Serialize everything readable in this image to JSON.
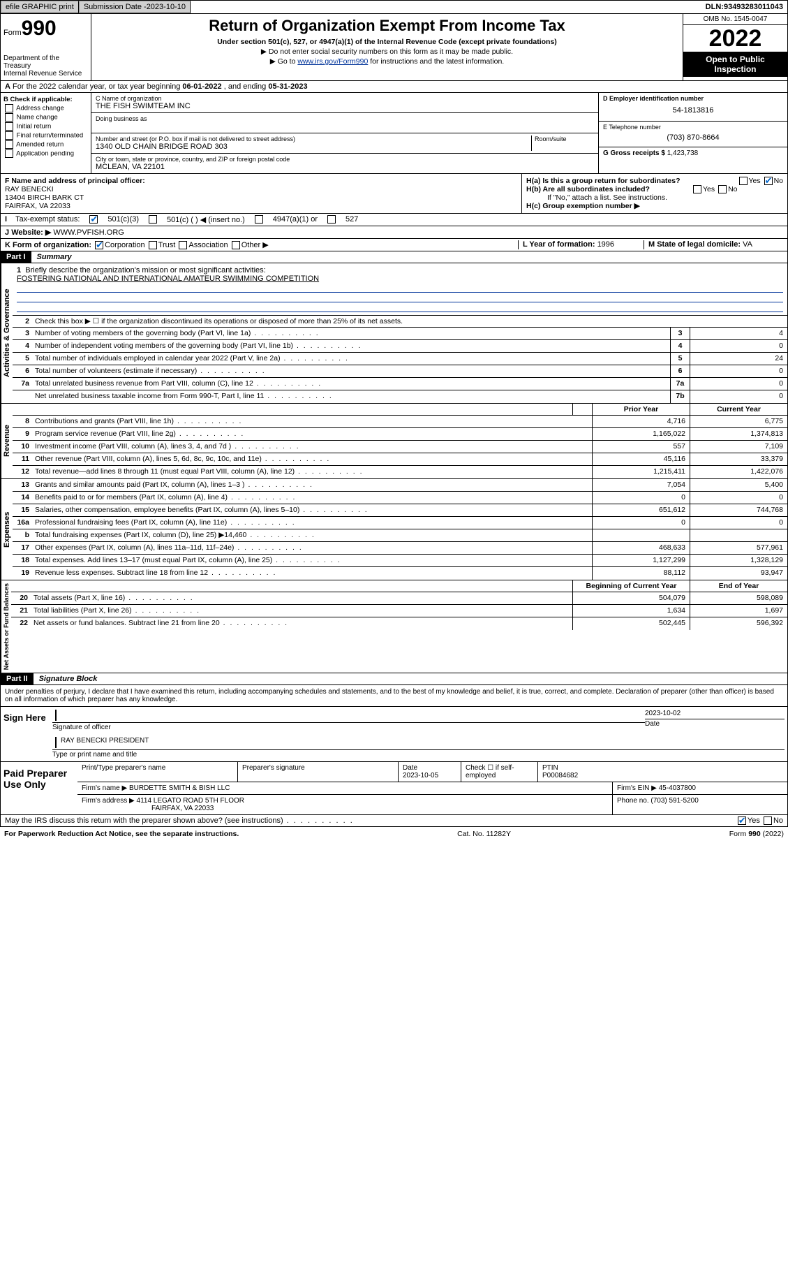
{
  "topbar": {
    "efile": "efile GRAPHIC print",
    "subdate_lbl": "Submission Date - ",
    "subdate": "2023-10-10",
    "dln_lbl": "DLN: ",
    "dln": "93493283011043"
  },
  "header": {
    "form_prefix": "Form",
    "form_no": "990",
    "dept": "Department of the Treasury\nInternal Revenue Service",
    "title": "Return of Organization Exempt From Income Tax",
    "subtitle": "Under section 501(c), 527, or 4947(a)(1) of the Internal Revenue Code (except private foundations)",
    "note1": "▶ Do not enter social security numbers on this form as it may be made public.",
    "note2_pre": "▶ Go to ",
    "note2_link": "www.irs.gov/Form990",
    "note2_post": " for instructions and the latest information.",
    "omb": "OMB No. 1545-0047",
    "year": "2022",
    "open": "Open to Public Inspection"
  },
  "rowA": {
    "text": "For the 2022 calendar year, or tax year beginning ",
    "begin": "06-01-2022",
    "mid": " , and ending ",
    "end": "05-31-2023"
  },
  "colB": {
    "hdr": "B Check if applicable:",
    "opts": [
      "Address change",
      "Name change",
      "Initial return",
      "Final return/terminated",
      "Amended return",
      "Application pending"
    ]
  },
  "boxC": {
    "name_lbl": "C Name of organization",
    "name": "THE FISH SWIMTEAM INC",
    "dba_lbl": "Doing business as",
    "addr_lbl": "Number and street (or P.O. box if mail is not delivered to street address)",
    "room_lbl": "Room/suite",
    "addr": "1340 OLD CHAIN BRIDGE ROAD 303",
    "city_lbl": "City or town, state or province, country, and ZIP or foreign postal code",
    "city": "MCLEAN, VA  22101"
  },
  "boxD": {
    "lbl": "D Employer identification number",
    "val": "54-1813816"
  },
  "boxE": {
    "lbl": "E Telephone number",
    "val": "(703) 870-8664"
  },
  "boxG": {
    "lbl": "G Gross receipts $ ",
    "val": "1,423,738"
  },
  "boxF": {
    "lbl": "F  Name and address of principal officer:",
    "name": "RAY BENECKI",
    "addr1": "13404 BIRCH BARK CT",
    "addr2": "FAIRFAX, VA  22033"
  },
  "boxH": {
    "a": "H(a)  Is this a group return for subordinates?",
    "b": "H(b)  Are all subordinates included?",
    "b_note": "If \"No,\" attach a list. See instructions.",
    "c": "H(c)  Group exemption number ▶",
    "yes": "Yes",
    "no": "No"
  },
  "rowI": {
    "lbl": "Tax-exempt status:",
    "opts": [
      "501(c)(3)",
      "501(c) (   ) ◀ (insert no.)",
      "4947(a)(1) or",
      "527"
    ]
  },
  "rowJ": {
    "lbl": "Website: ▶",
    "val": "WWW.PVFISH.ORG"
  },
  "rowK": {
    "lbl": "K Form of organization:",
    "opts": [
      "Corporation",
      "Trust",
      "Association",
      "Other ▶"
    ]
  },
  "rowL": {
    "lbl": "L Year of formation: ",
    "val": "1996"
  },
  "rowM": {
    "lbl": "M State of legal domicile: ",
    "val": "VA"
  },
  "part1": {
    "hdr": "Part I",
    "title": "Summary"
  },
  "summary": {
    "l1_lbl": "Briefly describe the organization's mission or most significant activities:",
    "l1_val": "FOSTERING NATIONAL AND INTERNATIONAL AMATEUR SWIMMING COMPETITION",
    "l2": "Check this box ▶ ☐  if the organization discontinued its operations or disposed of more than 25% of its net assets.",
    "lines_ag": [
      {
        "n": "3",
        "d": "Number of voting members of the governing body (Part VI, line 1a)",
        "b": "3",
        "v": "4"
      },
      {
        "n": "4",
        "d": "Number of independent voting members of the governing body (Part VI, line 1b)",
        "b": "4",
        "v": "0"
      },
      {
        "n": "5",
        "d": "Total number of individuals employed in calendar year 2022 (Part V, line 2a)",
        "b": "5",
        "v": "24"
      },
      {
        "n": "6",
        "d": "Total number of volunteers (estimate if necessary)",
        "b": "6",
        "v": "0"
      },
      {
        "n": "7a",
        "d": "Total unrelated business revenue from Part VIII, column (C), line 12",
        "b": "7a",
        "v": "0"
      },
      {
        "n": "",
        "d": "Net unrelated business taxable income from Form 990-T, Part I, line 11",
        "b": "7b",
        "v": "0"
      }
    ],
    "col_hdr": {
      "prior": "Prior Year",
      "current": "Current Year"
    },
    "revenue": [
      {
        "n": "8",
        "d": "Contributions and grants (Part VIII, line 1h)",
        "p": "4,716",
        "c": "6,775"
      },
      {
        "n": "9",
        "d": "Program service revenue (Part VIII, line 2g)",
        "p": "1,165,022",
        "c": "1,374,813"
      },
      {
        "n": "10",
        "d": "Investment income (Part VIII, column (A), lines 3, 4, and 7d )",
        "p": "557",
        "c": "7,109"
      },
      {
        "n": "11",
        "d": "Other revenue (Part VIII, column (A), lines 5, 6d, 8c, 9c, 10c, and 11e)",
        "p": "45,116",
        "c": "33,379"
      },
      {
        "n": "12",
        "d": "Total revenue—add lines 8 through 11 (must equal Part VIII, column (A), line 12)",
        "p": "1,215,411",
        "c": "1,422,076"
      }
    ],
    "expenses": [
      {
        "n": "13",
        "d": "Grants and similar amounts paid (Part IX, column (A), lines 1–3 )",
        "p": "7,054",
        "c": "5,400"
      },
      {
        "n": "14",
        "d": "Benefits paid to or for members (Part IX, column (A), line 4)",
        "p": "0",
        "c": "0"
      },
      {
        "n": "15",
        "d": "Salaries, other compensation, employee benefits (Part IX, column (A), lines 5–10)",
        "p": "651,612",
        "c": "744,768"
      },
      {
        "n": "16a",
        "d": "Professional fundraising fees (Part IX, column (A), line 11e)",
        "p": "0",
        "c": "0"
      },
      {
        "n": "b",
        "d": "Total fundraising expenses (Part IX, column (D), line 25) ▶14,460",
        "p": "",
        "c": ""
      },
      {
        "n": "17",
        "d": "Other expenses (Part IX, column (A), lines 11a–11d, 11f–24e)",
        "p": "468,633",
        "c": "577,961"
      },
      {
        "n": "18",
        "d": "Total expenses. Add lines 13–17 (must equal Part IX, column (A), line 25)",
        "p": "1,127,299",
        "c": "1,328,129"
      },
      {
        "n": "19",
        "d": "Revenue less expenses. Subtract line 18 from line 12",
        "p": "88,112",
        "c": "93,947"
      }
    ],
    "net_hdr": {
      "begin": "Beginning of Current Year",
      "end": "End of Year"
    },
    "net": [
      {
        "n": "20",
        "d": "Total assets (Part X, line 16)",
        "p": "504,079",
        "c": "598,089"
      },
      {
        "n": "21",
        "d": "Total liabilities (Part X, line 26)",
        "p": "1,634",
        "c": "1,697"
      },
      {
        "n": "22",
        "d": "Net assets or fund balances. Subtract line 21 from line 20",
        "p": "502,445",
        "c": "596,392"
      }
    ],
    "side_ag": "Activities & Governance",
    "side_rev": "Revenue",
    "side_exp": "Expenses",
    "side_net": "Net Assets or Fund Balances"
  },
  "part2": {
    "hdr": "Part II",
    "title": "Signature Block"
  },
  "sig": {
    "declare": "Under penalties of perjury, I declare that I have examined this return, including accompanying schedules and statements, and to the best of my knowledge and belief, it is true, correct, and complete. Declaration of preparer (other than officer) is based on all information of which preparer has any knowledge.",
    "sign_here": "Sign Here",
    "officer_sig": "Signature of officer",
    "date": "2023-10-02",
    "date_lbl": "Date",
    "officer_name": "RAY BENECKI PRESIDENT",
    "officer_name_lbl": "Type or print name and title"
  },
  "prep": {
    "hdr": "Paid Preparer Use Only",
    "cols": [
      "Print/Type preparer's name",
      "Preparer's signature",
      "Date",
      "",
      "PTIN"
    ],
    "date": "2023-10-05",
    "self": "Check ☐ if self-employed",
    "ptin": "P00084682",
    "firm_lbl": "Firm's name    ▶",
    "firm": "BURDETTE SMITH & BISH LLC",
    "ein_lbl": "Firm's EIN ▶",
    "ein": "45-4037800",
    "addr_lbl": "Firm's address ▶",
    "addr1": "4114 LEGATO ROAD 5TH FLOOR",
    "addr2": "FAIRFAX, VA  22033",
    "phone_lbl": "Phone no. ",
    "phone": "(703) 591-5200"
  },
  "bottom": {
    "q": "May the IRS discuss this return with the preparer shown above? (see instructions)",
    "yes": "Yes",
    "no": "No"
  },
  "footer": {
    "l": "For Paperwork Reduction Act Notice, see the separate instructions.",
    "m": "Cat. No. 11282Y",
    "r": "Form 990 (2022)"
  }
}
